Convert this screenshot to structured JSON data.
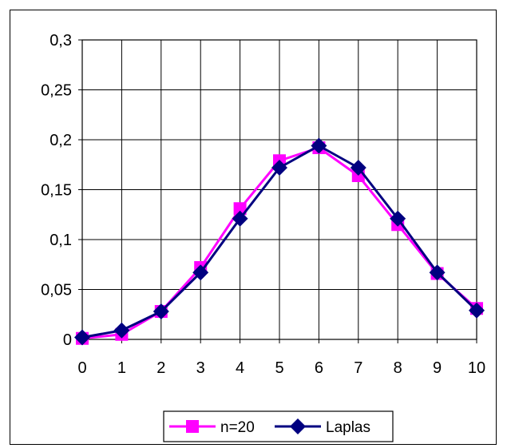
{
  "chart_data": {
    "type": "line",
    "title": "",
    "xlabel": "",
    "ylabel": "",
    "x": [
      0,
      1,
      2,
      3,
      4,
      5,
      6,
      7,
      8,
      9,
      10
    ],
    "xlim": [
      0,
      10
    ],
    "ylim": [
      0,
      0.3
    ],
    "x_ticks": [
      "0",
      "1",
      "2",
      "3",
      "4",
      "5",
      "6",
      "7",
      "8",
      "9",
      "10"
    ],
    "y_ticks": [
      0,
      0.05,
      0.1,
      0.15,
      0.2,
      0.25,
      0.3
    ],
    "y_tick_labels": [
      "0",
      "0,05",
      "0,1",
      "0,15",
      "0,2",
      "0,25",
      "0,3"
    ],
    "grid": true,
    "legend_position": "bottom",
    "series": [
      {
        "name": "n=20",
        "color": "#ff00ff",
        "marker": "square",
        "values": [
          0.001,
          0.005,
          0.028,
          0.072,
          0.131,
          0.179,
          0.192,
          0.164,
          0.115,
          0.066,
          0.031
        ]
      },
      {
        "name": "Laplas",
        "color": "#000080",
        "marker": "diamond",
        "values": [
          0.002,
          0.009,
          0.028,
          0.067,
          0.121,
          0.172,
          0.194,
          0.172,
          0.121,
          0.067,
          0.029
        ]
      }
    ]
  }
}
